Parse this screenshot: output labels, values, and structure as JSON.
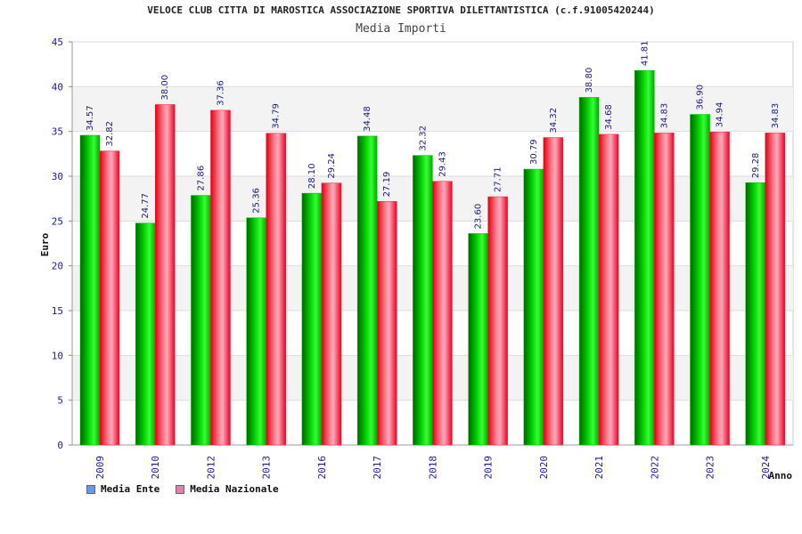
{
  "header": {
    "title": "VELOCE CLUB CITTA DI MAROSTICA ASSOCIAZIONE SPORTIVA DILETTANTISTICA (c.f.91005420244)",
    "subtitle": "Media Importi"
  },
  "colors": {
    "ente": "#00bb00",
    "nazionale": "#ee2233",
    "legend_ente": "#6699ee",
    "legend_nazionale": "#e080b0",
    "axis_text": "#1a1aa0"
  },
  "legend": {
    "items": [
      {
        "label": "Media Ente"
      },
      {
        "label": "Media Nazionale"
      }
    ]
  },
  "chart_data": {
    "type": "bar",
    "title": "VELOCE CLUB CITTA DI MAROSTICA ASSOCIAZIONE SPORTIVA DILETTANTISTICA (c.f.91005420244)",
    "subtitle": "Media Importi",
    "xlabel": "Anno",
    "ylabel": "Euro",
    "ylim": [
      0,
      45
    ],
    "yticks": [
      0,
      5,
      10,
      15,
      20,
      25,
      30,
      35,
      40,
      45
    ],
    "grid": true,
    "legend_position": "bottom-left",
    "categories": [
      "2009",
      "2010",
      "2012",
      "2013",
      "2016",
      "2017",
      "2018",
      "2019",
      "2020",
      "2021",
      "2022",
      "2023",
      "2024"
    ],
    "series": [
      {
        "name": "Media Ente",
        "values": [
          34.57,
          24.77,
          27.86,
          25.36,
          28.1,
          34.48,
          32.32,
          23.6,
          30.79,
          38.8,
          41.81,
          36.9,
          29.28
        ]
      },
      {
        "name": "Media Nazionale",
        "values": [
          32.82,
          38.0,
          37.36,
          34.79,
          29.24,
          27.19,
          29.43,
          27.71,
          34.32,
          34.68,
          34.83,
          34.94,
          34.83
        ]
      }
    ]
  }
}
